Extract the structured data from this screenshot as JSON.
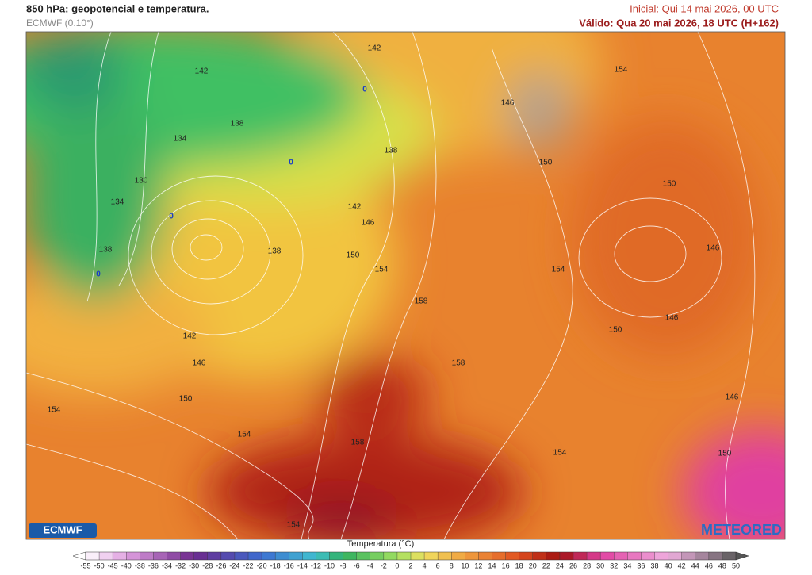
{
  "header": {
    "title": "850 hPa: geopotencial e temperatura.",
    "model": "ECMWF (0.10°)",
    "initial": "Inicial: Qui 14 mai 2026, 00 UTC",
    "valid": "Válido: Qua 20 mai 2026, 18 UTC (H+162)"
  },
  "map": {
    "contour_labels": [
      142,
      142,
      138,
      134,
      138,
      130,
      134,
      138,
      138,
      142,
      146,
      150,
      154,
      158,
      146,
      154,
      150,
      150,
      146,
      154,
      146,
      150,
      142,
      146,
      150,
      154,
      154,
      158,
      158,
      154,
      146,
      150,
      154
    ],
    "freezing_labels": [
      0,
      0,
      0,
      0
    ]
  },
  "logos": {
    "left": "ECMWF",
    "right": "METEORED"
  },
  "colorbar": {
    "title": "Temperatura (°C)",
    "ticks": [
      -55,
      -50,
      -45,
      -40,
      -38,
      -36,
      -34,
      -32,
      -30,
      -28,
      -26,
      -24,
      -22,
      -20,
      -18,
      -16,
      -14,
      -12,
      -10,
      -8,
      -6,
      -4,
      -2,
      0,
      2,
      4,
      6,
      8,
      10,
      12,
      14,
      16,
      18,
      20,
      22,
      24,
      26,
      28,
      30,
      32,
      34,
      36,
      38,
      40,
      42,
      44,
      46,
      48,
      50
    ]
  }
}
